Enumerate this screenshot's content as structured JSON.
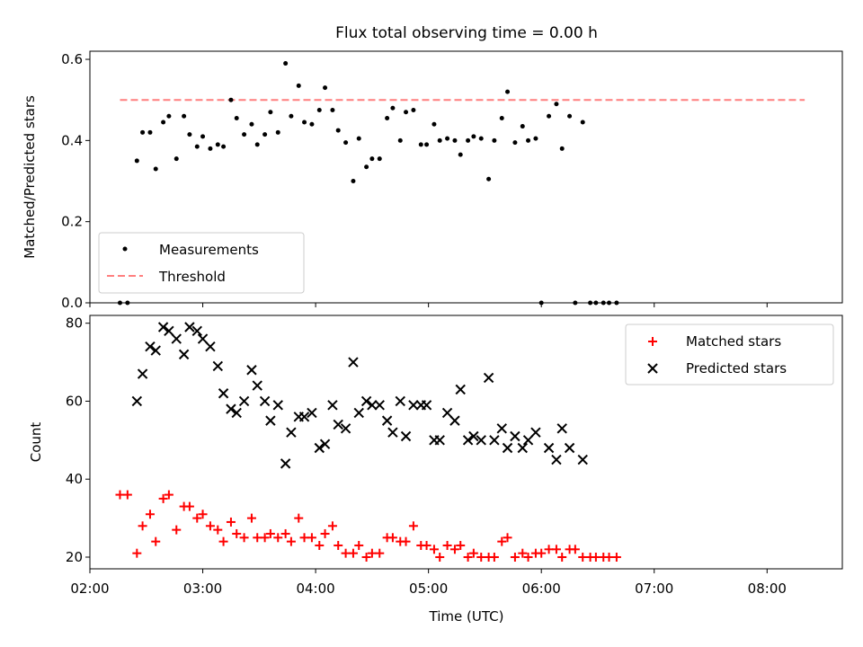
{
  "title": "Flux total observing time = 0.00 h",
  "chart_data": [
    {
      "type": "scatter",
      "panel": "top",
      "title": "Flux total observing time = 0.00 h",
      "xlabel": "",
      "ylabel": "Matched/Predicted stars",
      "xlim": [
        "02:00",
        "08:40"
      ],
      "ylim": [
        0,
        0.62
      ],
      "yticks": [
        "0.0",
        "0.2",
        "0.4",
        "0.6"
      ],
      "yticks_values": [
        0,
        0.2,
        0.4,
        0.6
      ],
      "grid": false,
      "legend": "lower-left",
      "series": [
        {
          "name": "Measurements",
          "marker": "dot",
          "color": "#000000",
          "points": [
            [
              "02:16",
              0
            ],
            [
              "02:20",
              0
            ],
            [
              "02:25",
              0.35
            ],
            [
              "02:28",
              0.42
            ],
            [
              "02:32",
              0.42
            ],
            [
              "02:35",
              0.33
            ],
            [
              "02:39",
              0.445
            ],
            [
              "02:42",
              0.46
            ],
            [
              "02:46",
              0.355
            ],
            [
              "02:50",
              0.46
            ],
            [
              "02:53",
              0.415
            ],
            [
              "02:57",
              0.385
            ],
            [
              "03:00",
              0.41
            ],
            [
              "03:04",
              0.38
            ],
            [
              "03:08",
              0.39
            ],
            [
              "03:11",
              0.385
            ],
            [
              "03:15",
              0.5
            ],
            [
              "03:18",
              0.455
            ],
            [
              "03:22",
              0.415
            ],
            [
              "03:26",
              0.44
            ],
            [
              "03:29",
              0.39
            ],
            [
              "03:33",
              0.415
            ],
            [
              "03:36",
              0.47
            ],
            [
              "03:40",
              0.42
            ],
            [
              "03:44",
              0.59
            ],
            [
              "03:47",
              0.46
            ],
            [
              "03:51",
              0.535
            ],
            [
              "03:54",
              0.445
            ],
            [
              "03:58",
              0.44
            ],
            [
              "04:02",
              0.475
            ],
            [
              "04:05",
              0.53
            ],
            [
              "04:09",
              0.475
            ],
            [
              "04:12",
              0.425
            ],
            [
              "04:16",
              0.395
            ],
            [
              "04:20",
              0.3
            ],
            [
              "04:23",
              0.405
            ],
            [
              "04:27",
              0.335
            ],
            [
              "04:30",
              0.355
            ],
            [
              "04:34",
              0.355
            ],
            [
              "04:38",
              0.455
            ],
            [
              "04:41",
              0.48
            ],
            [
              "04:45",
              0.4
            ],
            [
              "04:48",
              0.47
            ],
            [
              "04:52",
              0.475
            ],
            [
              "04:56",
              0.39
            ],
            [
              "04:59",
              0.39
            ],
            [
              "05:03",
              0.44
            ],
            [
              "05:06",
              0.4
            ],
            [
              "05:10",
              0.405
            ],
            [
              "05:14",
              0.4
            ],
            [
              "05:17",
              0.365
            ],
            [
              "05:21",
              0.4
            ],
            [
              "05:24",
              0.41
            ],
            [
              "05:28",
              0.405
            ],
            [
              "05:32",
              0.305
            ],
            [
              "05:35",
              0.4
            ],
            [
              "05:39",
              0.455
            ],
            [
              "05:42",
              0.52
            ],
            [
              "05:46",
              0.395
            ],
            [
              "05:50",
              0.435
            ],
            [
              "05:53",
              0.4
            ],
            [
              "05:57",
              0.405
            ],
            [
              "06:00",
              0
            ],
            [
              "06:04",
              0.46
            ],
            [
              "06:08",
              0.49
            ],
            [
              "06:11",
              0.38
            ],
            [
              "06:15",
              0.46
            ],
            [
              "06:18",
              0
            ],
            [
              "06:22",
              0.445
            ],
            [
              "06:26",
              0
            ],
            [
              "06:29",
              0
            ],
            [
              "06:33",
              0
            ],
            [
              "06:36",
              0
            ],
            [
              "06:40",
              0
            ]
          ]
        },
        {
          "name": "Threshold",
          "style": "dashed",
          "color": "#ff7f7f",
          "y": 0.5,
          "x": [
            "02:16",
            "08:20"
          ]
        }
      ]
    },
    {
      "type": "scatter",
      "panel": "bottom",
      "xlabel": "Time (UTC)",
      "ylabel": "Count",
      "xlim": [
        "02:00",
        "08:40"
      ],
      "xticks": [
        "02:00",
        "03:00",
        "04:00",
        "05:00",
        "06:00",
        "07:00",
        "08:00"
      ],
      "ylim": [
        17,
        82
      ],
      "yticks": [
        "20",
        "40",
        "60",
        "80"
      ],
      "yticks_values": [
        20,
        40,
        60,
        80
      ],
      "grid": false,
      "legend": "upper-right",
      "series": [
        {
          "name": "Matched stars",
          "marker": "plus",
          "color": "#ff0000",
          "points": [
            [
              "02:16",
              36
            ],
            [
              "02:20",
              36
            ],
            [
              "02:25",
              21
            ],
            [
              "02:28",
              28
            ],
            [
              "02:32",
              31
            ],
            [
              "02:35",
              24
            ],
            [
              "02:39",
              35
            ],
            [
              "02:42",
              36
            ],
            [
              "02:46",
              27
            ],
            [
              "02:50",
              33
            ],
            [
              "02:53",
              33
            ],
            [
              "02:57",
              30
            ],
            [
              "03:00",
              31
            ],
            [
              "03:04",
              28
            ],
            [
              "03:08",
              27
            ],
            [
              "03:11",
              24
            ],
            [
              "03:15",
              29
            ],
            [
              "03:18",
              26
            ],
            [
              "03:22",
              25
            ],
            [
              "03:26",
              30
            ],
            [
              "03:29",
              25
            ],
            [
              "03:33",
              25
            ],
            [
              "03:36",
              26
            ],
            [
              "03:40",
              25
            ],
            [
              "03:44",
              26
            ],
            [
              "03:47",
              24
            ],
            [
              "03:51",
              30
            ],
            [
              "03:54",
              25
            ],
            [
              "03:58",
              25
            ],
            [
              "04:02",
              23
            ],
            [
              "04:05",
              26
            ],
            [
              "04:09",
              28
            ],
            [
              "04:12",
              23
            ],
            [
              "04:16",
              21
            ],
            [
              "04:20",
              21
            ],
            [
              "04:23",
              23
            ],
            [
              "04:27",
              20
            ],
            [
              "04:30",
              21
            ],
            [
              "04:34",
              21
            ],
            [
              "04:38",
              25
            ],
            [
              "04:41",
              25
            ],
            [
              "04:45",
              24
            ],
            [
              "04:48",
              24
            ],
            [
              "04:52",
              28
            ],
            [
              "04:56",
              23
            ],
            [
              "04:59",
              23
            ],
            [
              "05:03",
              22
            ],
            [
              "05:06",
              20
            ],
            [
              "05:10",
              23
            ],
            [
              "05:14",
              22
            ],
            [
              "05:17",
              23
            ],
            [
              "05:21",
              20
            ],
            [
              "05:24",
              21
            ],
            [
              "05:28",
              20
            ],
            [
              "05:32",
              20
            ],
            [
              "05:35",
              20
            ],
            [
              "05:39",
              24
            ],
            [
              "05:42",
              25
            ],
            [
              "05:46",
              20
            ],
            [
              "05:50",
              21
            ],
            [
              "05:53",
              20
            ],
            [
              "05:57",
              21
            ],
            [
              "06:00",
              21
            ],
            [
              "06:04",
              22
            ],
            [
              "06:08",
              22
            ],
            [
              "06:11",
              20
            ],
            [
              "06:15",
              22
            ],
            [
              "06:18",
              22
            ],
            [
              "06:22",
              20
            ],
            [
              "06:26",
              20
            ],
            [
              "06:29",
              20
            ],
            [
              "06:33",
              20
            ],
            [
              "06:36",
              20
            ],
            [
              "06:40",
              20
            ]
          ]
        },
        {
          "name": "Predicted stars",
          "marker": "x",
          "color": "#000000",
          "points": [
            [
              "02:25",
              60
            ],
            [
              "02:28",
              67
            ],
            [
              "02:32",
              74
            ],
            [
              "02:35",
              73
            ],
            [
              "02:39",
              79
            ],
            [
              "02:42",
              78
            ],
            [
              "02:46",
              76
            ],
            [
              "02:50",
              72
            ],
            [
              "02:53",
              79
            ],
            [
              "02:57",
              78
            ],
            [
              "03:00",
              76
            ],
            [
              "03:04",
              74
            ],
            [
              "03:08",
              69
            ],
            [
              "03:11",
              62
            ],
            [
              "03:15",
              58
            ],
            [
              "03:18",
              57
            ],
            [
              "03:22",
              60
            ],
            [
              "03:26",
              68
            ],
            [
              "03:29",
              64
            ],
            [
              "03:33",
              60
            ],
            [
              "03:36",
              55
            ],
            [
              "03:40",
              59
            ],
            [
              "03:44",
              44
            ],
            [
              "03:47",
              52
            ],
            [
              "03:51",
              56
            ],
            [
              "03:54",
              56
            ],
            [
              "03:58",
              57
            ],
            [
              "04:02",
              48
            ],
            [
              "04:05",
              49
            ],
            [
              "04:09",
              59
            ],
            [
              "04:12",
              54
            ],
            [
              "04:16",
              53
            ],
            [
              "04:20",
              70
            ],
            [
              "04:23",
              57
            ],
            [
              "04:27",
              60
            ],
            [
              "04:30",
              59
            ],
            [
              "04:34",
              59
            ],
            [
              "04:38",
              55
            ],
            [
              "04:41",
              52
            ],
            [
              "04:45",
              60
            ],
            [
              "04:48",
              51
            ],
            [
              "04:52",
              59
            ],
            [
              "04:56",
              59
            ],
            [
              "04:59",
              59
            ],
            [
              "05:03",
              50
            ],
            [
              "05:06",
              50
            ],
            [
              "05:10",
              57
            ],
            [
              "05:14",
              55
            ],
            [
              "05:17",
              63
            ],
            [
              "05:21",
              50
            ],
            [
              "05:24",
              51
            ],
            [
              "05:28",
              50
            ],
            [
              "05:32",
              66
            ],
            [
              "05:35",
              50
            ],
            [
              "05:39",
              53
            ],
            [
              "05:42",
              48
            ],
            [
              "05:46",
              51
            ],
            [
              "05:50",
              48
            ],
            [
              "05:53",
              50
            ],
            [
              "05:57",
              52
            ],
            [
              "06:04",
              48
            ],
            [
              "06:08",
              45
            ],
            [
              "06:11",
              53
            ],
            [
              "06:15",
              48
            ],
            [
              "06:22",
              45
            ]
          ]
        }
      ]
    }
  ]
}
